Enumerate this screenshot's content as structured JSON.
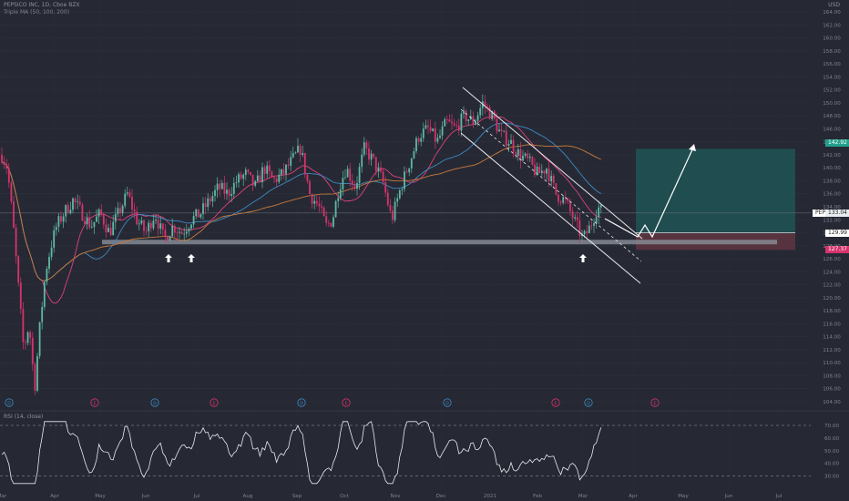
{
  "header": {
    "title": "PEPSICO INC, 1D, Cboe BZX",
    "indicator": "Triple MA (50, 100, 200)",
    "currency": "USD"
  },
  "rsi_panel": {
    "title": "RSI (14, close)"
  },
  "price_tags": {
    "symbol": "PEP",
    "current": "133.04",
    "target": "142.92",
    "entry": "129.99",
    "stop": "127.37"
  },
  "colors": {
    "background": "#262934",
    "up": "#5fb8a4",
    "down": "#d6336c",
    "ma50": "#e0407a",
    "ma100": "#3d8ac4",
    "ma200": "#c9793a",
    "target_zone": "#1f4f52",
    "stop_zone": "#5a3440",
    "support": "#8a8f99"
  },
  "chart_data": {
    "type": "candlestick",
    "y_axis_ticks": [
      "164.00",
      "162.00",
      "160.00",
      "158.00",
      "156.00",
      "154.00",
      "152.00",
      "150.00",
      "148.00",
      "146.00",
      "144.00",
      "142.00",
      "140.00",
      "138.00",
      "136.00",
      "134.00",
      "132.00",
      "130.00",
      "128.00",
      "126.00",
      "124.00",
      "122.00",
      "120.00",
      "118.00",
      "116.00",
      "114.00",
      "112.00",
      "110.00",
      "108.00",
      "106.00",
      "104.00"
    ],
    "ylim": [
      103,
      165
    ],
    "x_axis_ticks": [
      "Mar",
      "Apr",
      "May",
      "Jun",
      "Jul",
      "Aug",
      "Sep",
      "Oct",
      "Nov",
      "Dec",
      "2021",
      "Feb",
      "Mar",
      "Apr",
      "May",
      "Jun",
      "Jul"
    ],
    "events": [
      "D",
      "E",
      "D",
      "E",
      "D",
      "E",
      "D",
      "E",
      "D",
      "E"
    ],
    "rsi_ticks": [
      "70.00",
      "60.00",
      "50.00",
      "40.00",
      "30.00"
    ],
    "rsi_ylim": [
      25,
      75
    ],
    "rsi_bands": [
      70,
      30
    ],
    "levels": {
      "current": 133.04,
      "target": 142.92,
      "entry": 129.99,
      "stop": 127.37,
      "support": 128.5
    }
  }
}
